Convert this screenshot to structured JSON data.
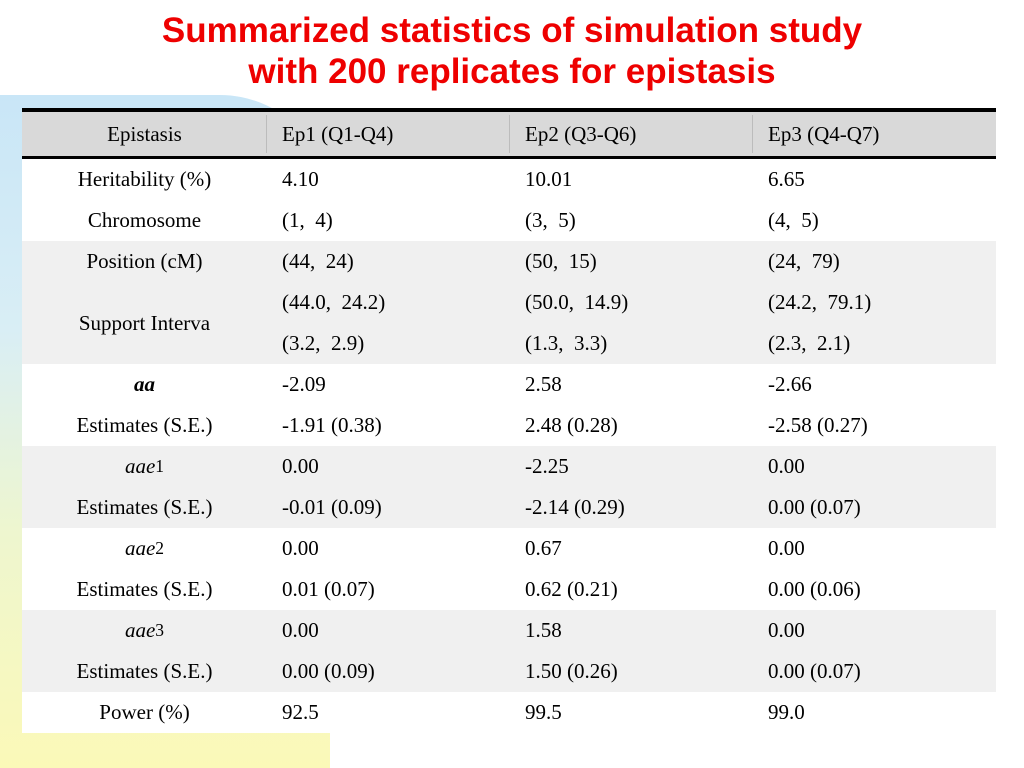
{
  "title": {
    "line1": "Summarized statistics of simulation study",
    "line2": "with 200 replicates for epistasis"
  },
  "table": {
    "headers": [
      "Epistasis",
      "Ep1 (Q1-Q4)",
      "Ep2 (Q3-Q6)",
      "Ep3 (Q4-Q7)"
    ],
    "groups": {
      "g1": {
        "labels": [
          "Heritability (%)",
          "Chromosome"
        ],
        "rows": [
          [
            "4.10",
            "10.01",
            "6.65"
          ],
          [
            "(1,  4)",
            "(3,  5)",
            "(4,  5)"
          ]
        ]
      },
      "g2": {
        "labels": [
          "Position (cM)",
          "Support Interva"
        ],
        "rows": [
          [
            "(44,  24)",
            "(50,  15)",
            "(24,  79)"
          ],
          [
            "(44.0,  24.2)",
            "(50.0,  14.9)",
            "(24.2,  79.1)"
          ],
          [
            "(3.2,  2.9)",
            "(1.3,  3.3)",
            "(2.3,  2.1)"
          ]
        ]
      },
      "g3": {
        "label_effect": "aa",
        "label_est": "Estimates (S.E.)",
        "rows": [
          [
            "-2.09",
            "2.58",
            "-2.66"
          ],
          [
            "-1.91 (0.38)",
            "2.48 (0.28)",
            "-2.58 (0.27)"
          ]
        ]
      },
      "g4": {
        "label_effect": "aae",
        "label_sub": "1",
        "label_est": "Estimates (S.E.)",
        "rows": [
          [
            "0.00",
            "-2.25",
            "0.00"
          ],
          [
            "-0.01 (0.09)",
            "-2.14 (0.29)",
            "0.00 (0.07)"
          ]
        ]
      },
      "g5": {
        "label_effect": "aae",
        "label_sub": "2",
        "label_est": "Estimates (S.E.)",
        "rows": [
          [
            "0.00",
            "0.67",
            "0.00"
          ],
          [
            "0.01 (0.07)",
            "0.62 (0.21)",
            "0.00 (0.06)"
          ]
        ]
      },
      "g6": {
        "label_effect": "aae",
        "label_sub": "3",
        "label_est": "Estimates (S.E.)",
        "rows": [
          [
            "0.00",
            "1.58",
            "0.00"
          ],
          [
            "0.00 (0.09)",
            "1.50 (0.26)",
            "0.00 (0.07)"
          ]
        ]
      },
      "g7": {
        "labels": [
          "Power (%)"
        ],
        "rows": [
          [
            "92.5",
            "99.5",
            "99.0"
          ]
        ]
      }
    }
  },
  "colors": {
    "title": "#ee0000",
    "header_bg": "#d9d9d9",
    "shade_bg": "#f0f0f0"
  }
}
